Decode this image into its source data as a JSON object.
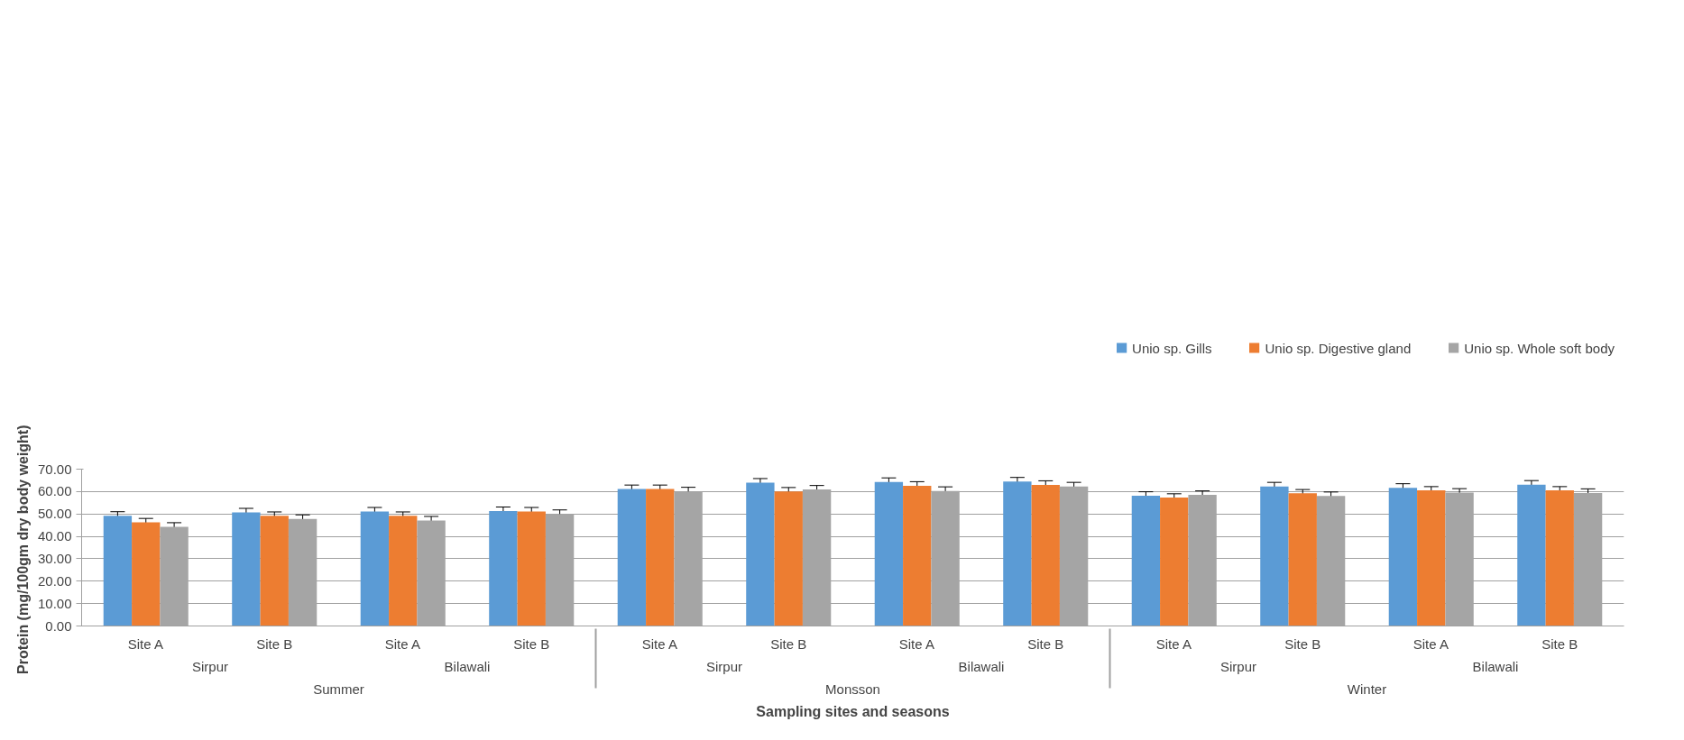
{
  "chart_data": {
    "type": "bar",
    "categories": [
      "Site A",
      "Site B",
      "Site A",
      "Site B",
      "Site A",
      "Site B",
      "Site A",
      "Site B",
      "Site A",
      "Site B",
      "Site A",
      "Site B"
    ],
    "annotations": [
      "Sirpur",
      "Bilawali",
      "Sirpur",
      "Bilawali",
      "Sirpur",
      "Bilawali",
      "Summer",
      "Monsson",
      "Winter"
    ],
    "xlabel": "Sampling sites and seasons",
    "ylabel": "Protein  (mg/100gm dry body weight)",
    "ylim": [
      0,
      70
    ],
    "yticks": [
      {
        "value": 0,
        "label": "0.00"
      },
      {
        "value": 10,
        "label": "10.00"
      },
      {
        "value": 20,
        "label": "20.00"
      },
      {
        "value": 30,
        "label": "30.00"
      },
      {
        "value": 40,
        "label": "40.00"
      },
      {
        "value": 50,
        "label": "50.00"
      },
      {
        "value": 60,
        "label": "60.00"
      },
      {
        "value": 70,
        "label": "70.00"
      }
    ],
    "grid": "y",
    "legend": "top right",
    "series": [
      {
        "name": "Unio sp. Gills",
        "color": "#5b9bd5",
        "values": [
          49.2,
          50.7,
          51.1,
          51.3,
          61.1,
          64.0,
          64.3,
          64.5,
          58.1,
          62.3,
          61.7,
          63.1
        ],
        "errors": [
          1.8,
          1.8,
          1.8,
          1.8,
          1.8,
          1.8,
          1.8,
          1.8,
          1.8,
          1.8,
          1.8,
          1.8
        ]
      },
      {
        "name": "Unio sp. Digestive gland",
        "color": "#ed7d31",
        "values": [
          46.3,
          49.2,
          49.2,
          51.1,
          61.1,
          60.0,
          62.6,
          63.0,
          57.3,
          59.2,
          60.5,
          60.5
        ],
        "errors": [
          1.7,
          1.7,
          1.7,
          1.8,
          1.8,
          1.8,
          1.8,
          1.8,
          1.7,
          1.7,
          1.7,
          1.7
        ]
      },
      {
        "name": "Unio sp. Whole soft body",
        "color": "#a5a5a5",
        "values": [
          44.3,
          47.8,
          47.1,
          50.0,
          60.0,
          60.9,
          60.2,
          62.3,
          58.5,
          58.0,
          59.5,
          59.3
        ],
        "errors": [
          1.8,
          1.8,
          1.8,
          1.8,
          1.9,
          1.8,
          1.9,
          1.8,
          1.8,
          1.8,
          1.8,
          1.9
        ]
      }
    ]
  }
}
